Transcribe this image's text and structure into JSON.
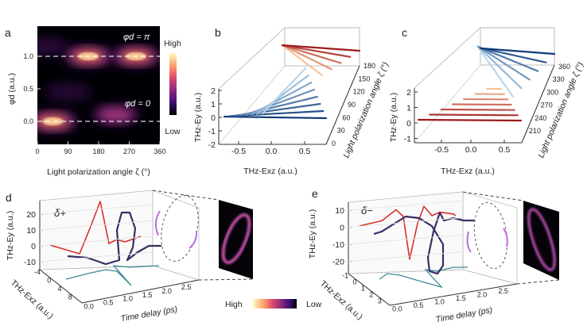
{
  "chart_data": [
    {
      "panel": "a",
      "type": "heatmap",
      "xlabel": "Light polarization angle ζ (°)",
      "ylabel": "φd (a.u.)",
      "xticks": [
        "0",
        "90",
        "180",
        "270",
        "360"
      ],
      "yticks": [
        "0.0",
        "0.5",
        "1.0"
      ],
      "xlim": [
        0,
        360
      ],
      "ylim": [
        -0.35,
        1.45
      ],
      "colorbar": {
        "high": "High",
        "low": "Low",
        "colors": [
          "#000004",
          "#3b0f70",
          "#8c2981",
          "#de4968",
          "#fe9f6d",
          "#fcfdbf"
        ]
      },
      "annotations": [
        "φd = π",
        "φd = 0"
      ],
      "reference_lines": [
        0.0,
        1.0
      ],
      "intensity_blobs": [
        {
          "zeta": 45,
          "phi": 0.0,
          "level": 0.95
        },
        {
          "zeta": 230,
          "phi": 0.1,
          "level": 0.45
        },
        {
          "zeta": 90,
          "phi": 0.45,
          "level": 0.2
        },
        {
          "zeta": 20,
          "phi": 1.15,
          "level": 0.25
        },
        {
          "zeta": 150,
          "phi": 1.0,
          "level": 0.85
        },
        {
          "zeta": 290,
          "phi": 1.0,
          "level": 1.0
        }
      ]
    },
    {
      "panel": "b",
      "type": "line",
      "xlabel": "THz-Exz (a.u.)",
      "ylabel": "THz-Ey (a.u.)",
      "zlabel": "Light polarization angle ζ (°)",
      "xticks": [
        "-0.5",
        "0.0",
        "0.5"
      ],
      "yticks": [
        "2",
        "1",
        "0",
        "-1",
        "-2"
      ],
      "zticks": [
        "0",
        "30",
        "60",
        "90",
        "120",
        "150",
        "180"
      ],
      "angles": [
        0,
        15,
        30,
        45,
        60,
        75,
        90,
        105,
        120,
        135,
        150,
        165,
        180
      ],
      "blue_range": [
        0,
        105
      ],
      "red_range": [
        120,
        180
      ]
    },
    {
      "panel": "c",
      "type": "line",
      "xlabel": "THz-Exz (a.u.)",
      "ylabel": "THz-Ey (a.u.)",
      "zlabel": "Light polarization angle ζ (°)",
      "xticks": [
        "-0.5",
        "0.0",
        "0.5"
      ],
      "yticks": [
        "2",
        "1",
        "0",
        "-1"
      ],
      "zticks": [
        "210",
        "240",
        "270",
        "300",
        "330",
        "360"
      ],
      "angles": [
        180,
        195,
        210,
        225,
        240,
        255,
        270,
        285,
        300,
        315,
        330,
        345,
        360
      ],
      "red_range": [
        180,
        270
      ],
      "blue_range": [
        285,
        360
      ]
    },
    {
      "panel": "d",
      "type": "line",
      "label": "δ+",
      "xlabel": "Time delay (ps)",
      "ylabel": "THz-Ey (a.u.)",
      "zlabel": "THz-Exz (a.u.)",
      "yticks": [
        "20",
        "10",
        "0",
        "-10"
      ],
      "xticks": [
        "0.0",
        "0.5",
        "1.0",
        "1.5",
        "2.0",
        "2.5"
      ],
      "zticks": [
        "-4",
        "0",
        "4",
        "8"
      ],
      "ey_vs_t": [
        [
          0,
          0.5
        ],
        [
          0.74,
          -5
        ],
        [
          1.0,
          11
        ],
        [
          1.26,
          28
        ],
        [
          1.48,
          1.5
        ],
        [
          1.68,
          4
        ],
        [
          1.88,
          2.5
        ],
        [
          2.28,
          6
        ]
      ],
      "trajectory": [
        [
          0.44,
          -6.5
        ],
        [
          0.94,
          -7.5
        ],
        [
          1.4,
          -11.5
        ],
        [
          1.74,
          -9
        ],
        [
          1.68,
          10
        ],
        [
          1.8,
          21
        ],
        [
          2.0,
          21
        ],
        [
          2.14,
          11
        ],
        [
          2.08,
          -1
        ],
        [
          1.94,
          -9
        ],
        [
          2.2,
          -4
        ],
        [
          2.48,
          0
        ],
        [
          2.8,
          0
        ]
      ],
      "floor_projection": [
        [
          0.4,
          6
        ],
        [
          0.94,
          2.5
        ],
        [
          1.4,
          0
        ],
        [
          1.68,
          1
        ],
        [
          2.04,
          10
        ],
        [
          1.6,
          -2.5
        ],
        [
          2.0,
          -1.5
        ],
        [
          2.74,
          -2.5
        ]
      ]
    },
    {
      "panel": "e",
      "type": "line",
      "label": "δ−",
      "xlabel": "Time delay (ps)",
      "ylabel": "THz-Ey (a.u.)",
      "zlabel": "THz-Exz (a.u.)",
      "yticks": [
        "10",
        "0",
        "-10",
        "-20"
      ],
      "xticks": [
        "0.0",
        "0.5",
        "1.0",
        "1.5",
        "2.0",
        "2.5"
      ],
      "zticks": [
        "-1",
        "0",
        "1",
        "2",
        "3"
      ],
      "ey_vs_t": [
        [
          0,
          1
        ],
        [
          0.56,
          4
        ],
        [
          0.92,
          10.5
        ],
        [
          1.1,
          6.5
        ],
        [
          1.26,
          -18.5
        ],
        [
          1.46,
          2.5
        ],
        [
          1.62,
          12.5
        ],
        [
          1.82,
          7
        ],
        [
          2.02,
          9
        ],
        [
          2.36,
          8
        ],
        [
          2.42,
          7
        ]
      ],
      "trajectory": [
        [
          0.36,
          -3.7
        ],
        [
          0.56,
          -2.3
        ],
        [
          1.16,
          6.5
        ],
        [
          1.5,
          5.6
        ],
        [
          1.82,
          0.9
        ],
        [
          2.1,
          -9.8
        ],
        [
          2.1,
          -22.3
        ],
        [
          1.96,
          -27
        ],
        [
          1.76,
          -25.6
        ],
        [
          1.72,
          -17.7
        ],
        [
          1.86,
          -2.3
        ],
        [
          2.02,
          8.8
        ],
        [
          2.12,
          4.2
        ],
        [
          2.36,
          5.6
        ],
        [
          2.62,
          4.2
        ],
        [
          2.9,
          4.2
        ]
      ],
      "floor_projection": [
        [
          0.5,
          7.5
        ],
        [
          0.7,
          4
        ],
        [
          1.02,
          5
        ],
        [
          1.42,
          8
        ],
        [
          2.06,
          12.5
        ],
        [
          1.66,
          1.5
        ],
        [
          1.96,
          2.5
        ],
        [
          2.36,
          0
        ],
        [
          2.72,
          0
        ]
      ]
    }
  ],
  "colorbar_bottom": {
    "high": "High",
    "low": "Low"
  },
  "colors": {
    "red": "#d7302a",
    "purple": "#3b2c63",
    "teal": "#3f8a95",
    "arrow": "#c06ae0"
  }
}
